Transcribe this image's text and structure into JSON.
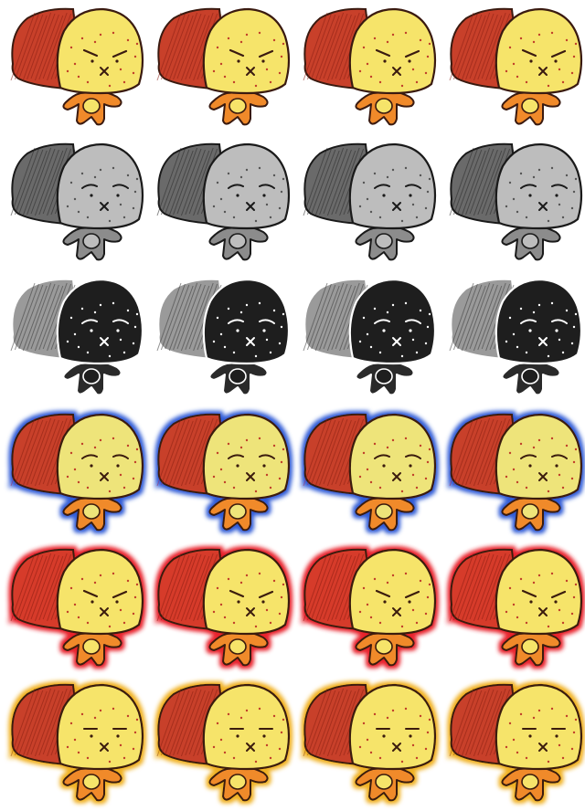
{
  "sheet": {
    "rows": [
      {
        "variant": "normal-angry",
        "palette": {
          "crust": "#c8402a",
          "crust_dark": "#8a1f14",
          "face": "#f6e46a",
          "body": "#f08a2a",
          "line": "#3a1a10",
          "dots": "#c0402a",
          "glow": ""
        },
        "expressions": [
          "angry",
          "angry",
          "angry",
          "angry"
        ]
      },
      {
        "variant": "grayscale-sad",
        "palette": {
          "crust": "#6a6a6a",
          "crust_dark": "#2a2a2a",
          "face": "#bdbdbd",
          "body": "#8c8c8c",
          "line": "#1a1a1a",
          "dots": "#555555",
          "glow": ""
        },
        "expressions": [
          "sad",
          "sad",
          "sad",
          "sad"
        ]
      },
      {
        "variant": "dark-sad",
        "palette": {
          "crust": "#9a9a9a",
          "crust_dark": "#3a3a3a",
          "face": "#1e1e1e",
          "body": "#2a2a2a",
          "line": "#ffffff",
          "dots": "#ffffff",
          "glow": ""
        },
        "expressions": [
          "sad",
          "sad",
          "sad",
          "sad"
        ]
      },
      {
        "variant": "blue-glow-sad",
        "palette": {
          "crust": "#c8402a",
          "crust_dark": "#8a1f14",
          "face": "#eee47a",
          "body": "#f08a2a",
          "line": "#3a1a10",
          "dots": "#c0402a",
          "glow": "#2f5bd6"
        },
        "expressions": [
          "sad",
          "sad",
          "sad",
          "sad"
        ]
      },
      {
        "variant": "red-glow-angry",
        "palette": {
          "crust": "#d63a2a",
          "crust_dark": "#8a1f14",
          "face": "#f6e46a",
          "body": "#f08a2a",
          "line": "#3a1a10",
          "dots": "#c0402a",
          "glow": "#e8202a"
        },
        "expressions": [
          "angry",
          "angry",
          "angry",
          "angry"
        ]
      },
      {
        "variant": "yellow-glow-neutral",
        "palette": {
          "crust": "#c8402a",
          "crust_dark": "#8a1f14",
          "face": "#f6e46a",
          "body": "#f08a2a",
          "line": "#3a1a10",
          "dots": "#c0402a",
          "glow": "#f0b020"
        },
        "expressions": [
          "neutral",
          "neutral",
          "neutral",
          "neutral"
        ]
      }
    ]
  }
}
